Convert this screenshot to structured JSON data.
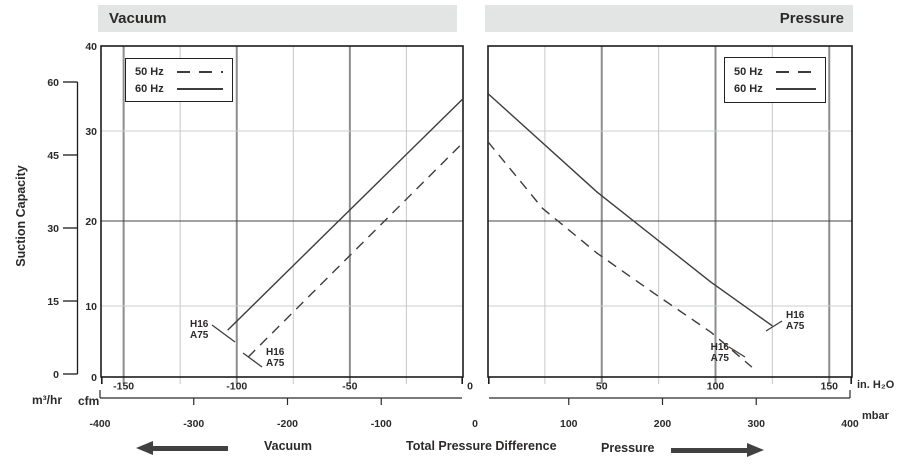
{
  "panels": {
    "vacuum": {
      "title": "Vacuum",
      "legend": [
        {
          "label": "50 Hz",
          "style": "dashed"
        },
        {
          "label": "60 Hz",
          "style": "solid"
        }
      ]
    },
    "pressure": {
      "title": "Pressure",
      "legend": [
        {
          "label": "50 Hz",
          "style": "dashed"
        },
        {
          "label": "60 Hz",
          "style": "solid"
        }
      ]
    }
  },
  "y_axis": {
    "label": "Suction Capacity",
    "units_m3hr": "m³/hr",
    "units_cfm": "cfm",
    "m3hr_ticks": [
      60,
      45,
      30,
      15,
      0
    ],
    "cfm_ticks": [
      40,
      30,
      20,
      10,
      0
    ]
  },
  "x_axis": {
    "inh2o_unit": "in. H₂O",
    "mbar_unit": "mbar",
    "vacuum_ticks": [
      -150,
      -100,
      -50
    ],
    "zero_label": "0",
    "pressure_ticks": [
      50,
      100,
      150
    ],
    "mbar_ticks": [
      -400,
      -300,
      -200,
      -100,
      0,
      100,
      200,
      300,
      400
    ]
  },
  "footer": {
    "vacuum_label": "Vacuum",
    "center_label": "Total Pressure Difference",
    "pressure_label": "Pressure"
  },
  "curve_label": {
    "line1": "H16",
    "line2": "A75"
  },
  "model": "H16 A75",
  "chart_data": [
    {
      "type": "line",
      "title": "Vacuum",
      "xlabel": "Vacuum, in. H2O (top) / mbar (bottom)",
      "ylabel": "Suction Capacity (cfm left-inner, m3/hr outer)",
      "xlim": [
        -160,
        0
      ],
      "ylim": [
        0,
        40
      ],
      "grid": "on",
      "legend_position": "top-left",
      "series": [
        {
          "name": "50 Hz",
          "style": "dashed",
          "points": [
            [
              -95,
              2.8
            ],
            [
              -47.5,
              16.6
            ],
            [
              0,
              28.7
            ]
          ]
        },
        {
          "name": "60 Hz",
          "style": "solid",
          "points": [
            [
              -104,
              6.6
            ],
            [
              -55,
              20.0
            ],
            [
              0,
              33.8
            ]
          ]
        }
      ]
    },
    {
      "type": "line",
      "title": "Pressure",
      "xlabel": "Pressure, in. H2O (top) / mbar (bottom)",
      "ylabel": "Suction Capacity (cfm left-inner, m3/hr outer)",
      "xlim": [
        0,
        160
      ],
      "ylim": [
        0,
        40
      ],
      "grid": "on",
      "legend_position": "top-right",
      "series": [
        {
          "name": "50 Hz",
          "style": "dashed",
          "points": [
            [
              0,
              28.8
            ],
            [
              24,
              21.4
            ],
            [
              48,
              16.2
            ],
            [
              73,
              11.5
            ],
            [
              98,
              6.3
            ],
            [
              116,
              1.4
            ]
          ]
        },
        {
          "name": "60 Hz",
          "style": "solid",
          "points": [
            [
              0,
              34.4
            ],
            [
              48,
              23.2
            ],
            [
              98,
              12.8
            ],
            [
              125,
              7.2
            ]
          ]
        }
      ]
    }
  ]
}
